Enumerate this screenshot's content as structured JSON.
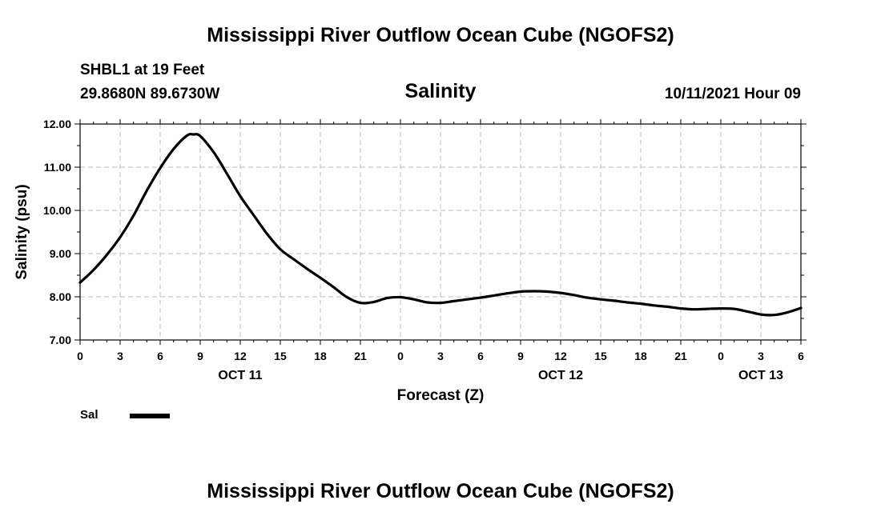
{
  "header": {
    "title": "Mississippi River Outflow Ocean Cube (NGOFS2)",
    "station": "SHBL1 at 19 Feet",
    "coords": "29.8680N  89.6730W",
    "datetime": "10/11/2021 Hour 09"
  },
  "footer": {
    "title": "Mississippi River Outflow Ocean Cube (NGOFS2)"
  },
  "legend": {
    "label": "Sal",
    "color": "#000000"
  },
  "chart_data": {
    "type": "line",
    "title": "Salinity",
    "xlabel": "Forecast (Z)",
    "ylabel": "Salinity (psu)",
    "grid": true,
    "xlim": [
      0,
      54
    ],
    "ylim": [
      7.0,
      12.0
    ],
    "xticks": [
      0,
      3,
      6,
      9,
      12,
      15,
      18,
      21,
      24,
      27,
      30,
      33,
      36,
      39,
      42,
      45,
      48,
      51,
      54
    ],
    "xtick_labels": [
      "0",
      "3",
      "6",
      "9",
      "12",
      "15",
      "18",
      "21",
      "0",
      "3",
      "6",
      "9",
      "12",
      "15",
      "18",
      "21",
      "0",
      "3",
      "6"
    ],
    "yticks": [
      7.0,
      8.0,
      9.0,
      10.0,
      11.0,
      12.0
    ],
    "ytick_labels": [
      "7.00",
      "8.00",
      "9.00",
      "10.00",
      "11.00",
      "12.00"
    ],
    "date_labels": [
      {
        "x": 12,
        "label": "OCT 11"
      },
      {
        "x": 36,
        "label": "OCT 12"
      },
      {
        "x": 51,
        "label": "OCT 13"
      }
    ],
    "series": [
      {
        "name": "Sal",
        "x": [
          0,
          1,
          2,
          3,
          4,
          5,
          6,
          7,
          8,
          8.5,
          9,
          10,
          11,
          12,
          13,
          14,
          15,
          16,
          17,
          18,
          19,
          20,
          21,
          22,
          23,
          24,
          25,
          26,
          27,
          28,
          29,
          30,
          31,
          32,
          33,
          34,
          35,
          36,
          37,
          38,
          39,
          40,
          41,
          42,
          43,
          44,
          45,
          46,
          47,
          48,
          49,
          50,
          51,
          52,
          53,
          54
        ],
        "values": [
          8.33,
          8.62,
          8.97,
          9.38,
          9.88,
          10.46,
          10.98,
          11.42,
          11.73,
          11.76,
          11.72,
          11.35,
          10.85,
          10.33,
          9.89,
          9.46,
          9.1,
          8.87,
          8.65,
          8.44,
          8.22,
          7.99,
          7.86,
          7.88,
          7.97,
          7.99,
          7.94,
          7.87,
          7.86,
          7.9,
          7.94,
          7.98,
          8.03,
          8.08,
          8.12,
          8.13,
          8.12,
          8.09,
          8.04,
          7.98,
          7.94,
          7.91,
          7.87,
          7.84,
          7.8,
          7.77,
          7.73,
          7.71,
          7.72,
          7.73,
          7.72,
          7.66,
          7.59,
          7.58,
          7.64,
          7.74
        ]
      }
    ]
  }
}
